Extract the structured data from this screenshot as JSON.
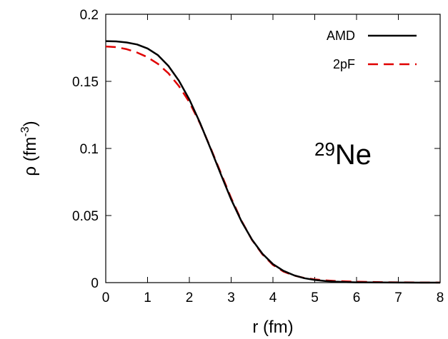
{
  "chart_data": {
    "type": "line",
    "xlabel": "r (fm)",
    "ylabel": {
      "base": "ρ (fm",
      "sup": "-3",
      "close": ")"
    },
    "xlim": [
      0,
      8
    ],
    "ylim": [
      0,
      0.2
    ],
    "xticks": [
      "0",
      "1",
      "2",
      "3",
      "4",
      "5",
      "6",
      "7",
      "8"
    ],
    "yticks": [
      "0",
      "0.05",
      "0.1",
      "0.15",
      "0.2"
    ],
    "annotation": {
      "sup": "29",
      "text": "Ne"
    },
    "legend_position": "top-right",
    "grid": false,
    "series": [
      {
        "name": "AMD",
        "style": "solid",
        "color": "#000000",
        "x": [
          0,
          0.25,
          0.5,
          0.75,
          1.0,
          1.25,
          1.5,
          1.75,
          2.0,
          2.25,
          2.5,
          2.75,
          3.0,
          3.25,
          3.5,
          3.75,
          4.0,
          4.25,
          4.5,
          4.75,
          5.0,
          5.25,
          5.5,
          5.75,
          6.0,
          6.5,
          7.0,
          7.5,
          8.0
        ],
        "y": [
          0.18,
          0.1798,
          0.179,
          0.1775,
          0.1745,
          0.1695,
          0.1615,
          0.1505,
          0.1365,
          0.1195,
          0.1005,
          0.081,
          0.062,
          0.0455,
          0.032,
          0.0215,
          0.0138,
          0.0088,
          0.0055,
          0.0033,
          0.002,
          0.0012,
          0.0007,
          0.0004,
          0.0002,
          0.0001,
          4e-05,
          1e-05,
          0.0
        ]
      },
      {
        "name": "2pF",
        "style": "dashed",
        "color": "#e00000",
        "x": [
          0,
          0.25,
          0.5,
          0.75,
          1.0,
          1.25,
          1.5,
          1.75,
          2.0,
          2.25,
          2.5,
          2.75,
          3.0,
          3.25,
          3.5,
          3.75,
          4.0,
          4.25,
          4.5,
          4.75,
          5.0,
          5.25,
          5.5,
          5.75,
          6.0,
          6.5,
          7.0,
          7.5,
          8.0
        ],
        "y": [
          0.176,
          0.1755,
          0.174,
          0.1715,
          0.168,
          0.163,
          0.156,
          0.1465,
          0.1345,
          0.119,
          0.101,
          0.082,
          0.063,
          0.046,
          0.0318,
          0.021,
          0.0132,
          0.0083,
          0.0053,
          0.0035,
          0.0024,
          0.0017,
          0.0012,
          0.0009,
          0.0007,
          0.0004,
          0.0002,
          0.0001,
          5e-05
        ]
      }
    ]
  }
}
